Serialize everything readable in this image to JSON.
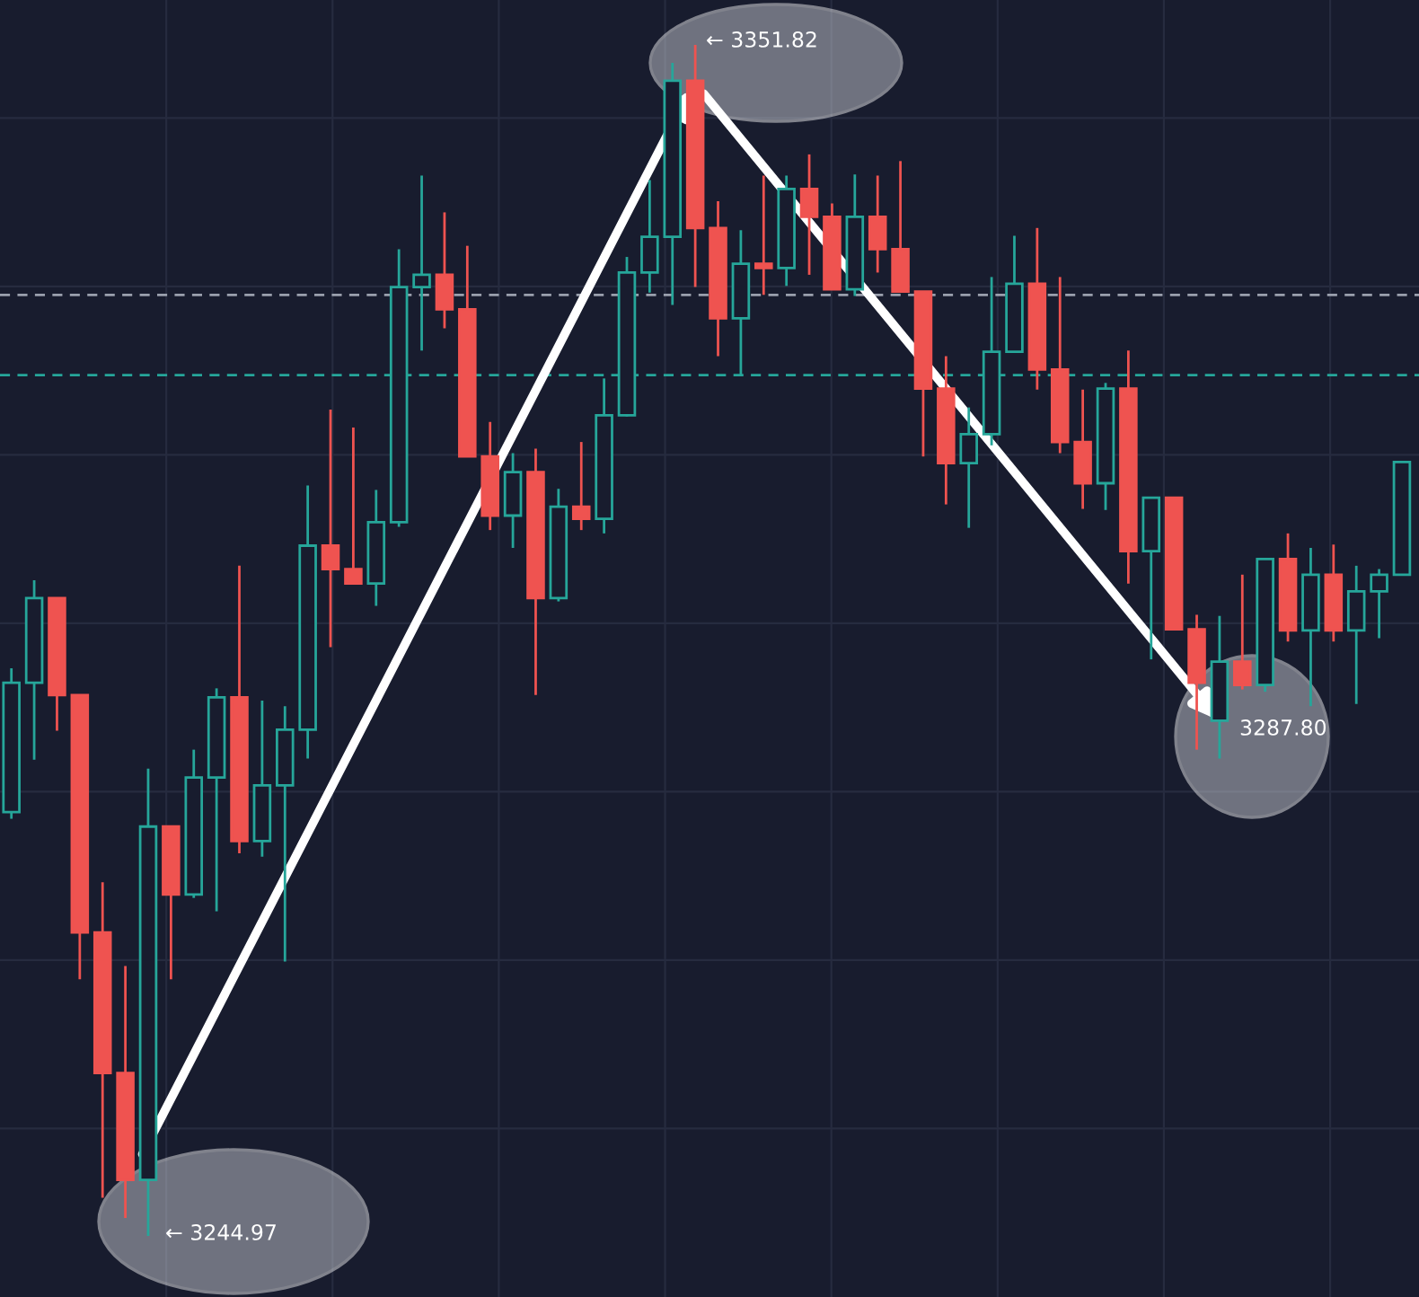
{
  "chart_data": {
    "type": "candlestick",
    "categories": [
      null,
      null,
      null,
      null,
      null,
      null,
      null,
      null,
      null,
      null,
      null,
      null,
      null,
      null,
      null,
      null,
      null,
      null,
      null,
      null,
      null,
      null,
      null,
      null,
      null,
      null,
      null,
      null,
      null,
      null,
      null,
      null,
      null,
      null,
      null,
      null,
      null,
      null,
      null,
      null,
      null,
      null,
      null,
      null,
      null,
      null,
      null,
      null,
      null,
      null,
      null,
      null,
      null,
      null,
      null,
      null,
      null,
      null,
      null,
      null,
      null,
      null
    ],
    "ohlc": [
      [
        3283.0,
        3295.9,
        3282.4,
        3294.6
      ],
      [
        3294.6,
        3303.8,
        3287.7,
        3302.2
      ],
      [
        3302.2,
        3302.2,
        3290.3,
        3293.5
      ],
      [
        3293.5,
        3293.5,
        3268.0,
        3272.2
      ],
      [
        3272.2,
        3276.7,
        3248.4,
        3259.6
      ],
      [
        3259.6,
        3269.2,
        3246.6,
        3250.0
      ],
      [
        3250.0,
        3286.9,
        3244.97,
        3281.7
      ],
      [
        3281.7,
        3281.7,
        3268.0,
        3275.6
      ],
      [
        3275.6,
        3288.6,
        3275.3,
        3286.1
      ],
      [
        3286.1,
        3294.1,
        3274.1,
        3293.3
      ],
      [
        3293.3,
        3305.1,
        3279.3,
        3280.4
      ],
      [
        3280.4,
        3293.0,
        3279.0,
        3285.4
      ],
      [
        3285.4,
        3292.5,
        3269.6,
        3290.4
      ],
      [
        3290.4,
        3312.3,
        3287.8,
        3306.9
      ],
      [
        3306.9,
        3319.1,
        3297.8,
        3304.8
      ],
      [
        3304.8,
        3317.5,
        3303.5,
        3303.5
      ],
      [
        3303.5,
        3311.9,
        3301.5,
        3309.0
      ],
      [
        3309.0,
        3333.5,
        3308.6,
        3330.1
      ],
      [
        3330.1,
        3340.1,
        3324.4,
        3331.2
      ],
      [
        3331.2,
        3336.8,
        3326.4,
        3328.1
      ],
      [
        3328.1,
        3333.8,
        3314.9,
        3314.9
      ],
      [
        3314.9,
        3318.0,
        3308.3,
        3309.6
      ],
      [
        3309.6,
        3315.2,
        3306.7,
        3313.5
      ],
      [
        3313.5,
        3315.6,
        3293.5,
        3302.2
      ],
      [
        3302.2,
        3312.0,
        3301.9,
        3310.4
      ],
      [
        3310.4,
        3316.2,
        3308.3,
        3309.3
      ],
      [
        3309.3,
        3321.9,
        3308.0,
        3318.6
      ],
      [
        3318.6,
        3332.8,
        3318.5,
        3331.4
      ],
      [
        3331.4,
        3339.7,
        3329.6,
        3334.6
      ],
      [
        3334.6,
        3350.2,
        3328.5,
        3348.6
      ],
      [
        3348.6,
        3351.82,
        3330.1,
        3335.4
      ],
      [
        3335.4,
        3337.8,
        3323.9,
        3327.3
      ],
      [
        3327.3,
        3335.2,
        3322.2,
        3332.2
      ],
      [
        3332.2,
        3340.1,
        3329.4,
        3331.8
      ],
      [
        3331.8,
        3340.1,
        3330.2,
        3338.9
      ],
      [
        3338.9,
        3342.0,
        3331.2,
        3336.4
      ],
      [
        3336.4,
        3337.6,
        3329.9,
        3329.9
      ],
      [
        3329.9,
        3340.2,
        3329.3,
        3336.4
      ],
      [
        3336.4,
        3340.1,
        3331.4,
        3333.5
      ],
      [
        3333.5,
        3341.4,
        3329.7,
        3329.7
      ],
      [
        3329.7,
        3329.7,
        3314.9,
        3321.0
      ],
      [
        3321.0,
        3323.9,
        3310.6,
        3314.3
      ],
      [
        3314.3,
        3319.3,
        3308.5,
        3316.9
      ],
      [
        3316.9,
        3331.0,
        3315.9,
        3324.3
      ],
      [
        3324.3,
        3334.7,
        3324.3,
        3330.4
      ],
      [
        3330.4,
        3335.4,
        3320.9,
        3322.7
      ],
      [
        3322.7,
        3331.0,
        3315.2,
        3316.2
      ],
      [
        3316.2,
        3320.9,
        3310.2,
        3312.5
      ],
      [
        3312.5,
        3321.5,
        3310.1,
        3321.0
      ],
      [
        3321.0,
        3324.4,
        3303.5,
        3306.4
      ],
      [
        3306.4,
        3311.2,
        3296.7,
        3311.2
      ],
      [
        3311.2,
        3311.2,
        3299.4,
        3299.4
      ],
      [
        3299.4,
        3300.7,
        3288.6,
        3294.6
      ],
      [
        3291.2,
        3300.6,
        3287.8,
        3296.5
      ],
      [
        3296.5,
        3304.3,
        3294.0,
        3294.4
      ],
      [
        3294.4,
        3305.7,
        3293.8,
        3305.7
      ],
      [
        3305.7,
        3308.0,
        3298.3,
        3299.3
      ],
      [
        3299.3,
        3306.7,
        3292.5,
        3304.3
      ],
      [
        3304.3,
        3307.0,
        3298.3,
        3299.3
      ],
      [
        3299.3,
        3305.1,
        3292.7,
        3302.8
      ],
      [
        3302.8,
        3304.8,
        3298.6,
        3304.3
      ],
      [
        3304.3,
        3314.4,
        3304.3,
        3314.4
      ]
    ],
    "colors": [
      "#26a69a",
      "#26a69a",
      "#ef5350",
      "#ef5350",
      "#ef5350",
      "#ef5350",
      "#26a69a",
      "#ef5350",
      "#26a69a",
      "#26a69a",
      "#ef5350",
      "#26a69a",
      "#26a69a",
      "#26a69a",
      "#ef5350",
      "#ef5350",
      "#26a69a",
      "#26a69a",
      "#26a69a",
      "#ef5350",
      "#ef5350",
      "#ef5350",
      "#26a69a",
      "#ef5350",
      "#26a69a",
      "#ef5350",
      "#26a69a",
      "#26a69a",
      "#26a69a",
      "#26a69a",
      "#ef5350",
      "#ef5350",
      "#26a69a",
      "#ef5350",
      "#26a69a",
      "#ef5350",
      "#ef5350",
      "#26a69a",
      "#ef5350",
      "#ef5350",
      "#ef5350",
      "#ef5350",
      "#26a69a",
      "#26a69a",
      "#26a69a",
      "#ef5350",
      "#ef5350",
      "#ef5350",
      "#26a69a",
      "#ef5350",
      "#26a69a",
      "#ef5350",
      "#ef5350",
      "#26a69a",
      "#ef5350",
      "#26a69a",
      "#ef5350",
      "#26a69a",
      "#ef5350",
      "#26a69a",
      "#26a69a",
      "#26a69a"
    ],
    "ylim": [
      3239.5,
      3355.85
    ],
    "tick_labels": false,
    "grid": true,
    "ref_lines": [
      {
        "axis": "y",
        "value": 3329.4,
        "color": "#9aa0ad",
        "line_style": "dashed"
      },
      {
        "axis": "y",
        "value": 3322.2,
        "color": "#26a69a",
        "line_style": "dashed"
      }
    ],
    "annotations": [
      "← 3244.97",
      "← 3351.82",
      "3287.80"
    ]
  }
}
